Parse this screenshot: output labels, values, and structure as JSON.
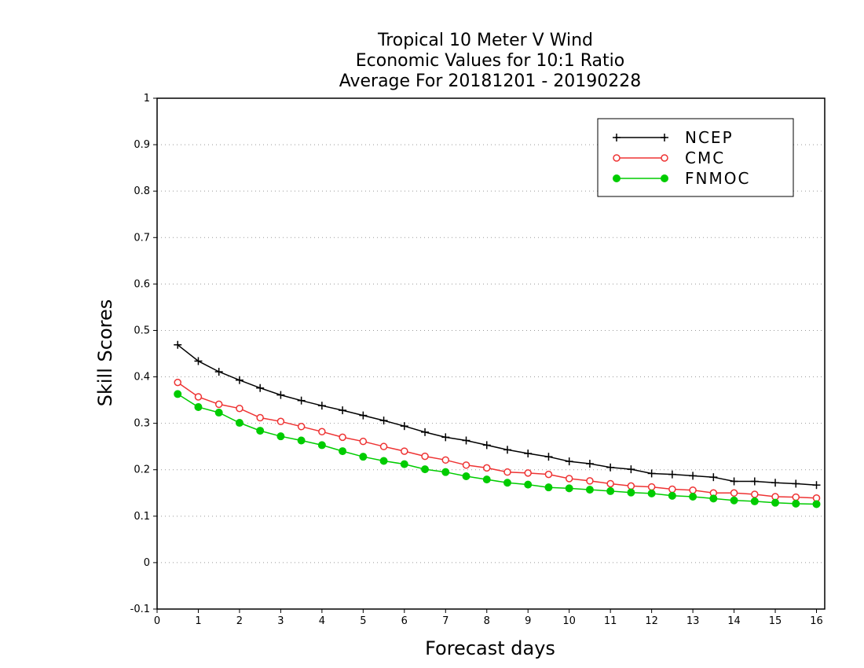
{
  "chart_data": {
    "type": "line",
    "title": [
      "Tropical 10 Meter V Wind",
      "Economic Values for 10:1 Ratio",
      "Average For 20181201 - 20190228"
    ],
    "xlabel": "Forecast days",
    "ylabel": "Skill Scores",
    "xlim": [
      0,
      16.2
    ],
    "ylim": [
      -0.1,
      1
    ],
    "xticks": [
      0,
      1,
      2,
      3,
      4,
      5,
      6,
      7,
      8,
      9,
      10,
      11,
      12,
      13,
      14,
      15,
      16
    ],
    "yticks": [
      -0.1,
      0,
      0.1,
      0.2,
      0.3,
      0.4,
      0.5,
      0.6,
      0.7,
      0.8,
      0.9,
      1
    ],
    "ytick_labels": [
      "-0.1",
      "0",
      "0.1",
      "0.2",
      "0.3",
      "0.4",
      "0.5",
      "0.6",
      "0.7",
      "0.8",
      "0.9",
      "1"
    ],
    "grid": "horizontal dotted",
    "legend_position": "top-right",
    "x": [
      0.5,
      1,
      1.5,
      2,
      2.5,
      3,
      3.5,
      4,
      4.5,
      5,
      5.5,
      6,
      6.5,
      7,
      7.5,
      8,
      8.5,
      9,
      9.5,
      10,
      10.5,
      11,
      11.5,
      12,
      12.5,
      13,
      13.5,
      14,
      14.5,
      15,
      15.5,
      16
    ],
    "series": [
      {
        "name": "NCEP",
        "color": "#000000",
        "marker": "plus",
        "values": [
          0.469,
          0.434,
          0.411,
          0.393,
          0.376,
          0.361,
          0.349,
          0.338,
          0.328,
          0.317,
          0.306,
          0.294,
          0.281,
          0.27,
          0.263,
          0.253,
          0.243,
          0.235,
          0.228,
          0.218,
          0.213,
          0.205,
          0.201,
          0.192,
          0.19,
          0.187,
          0.184,
          0.175,
          0.175,
          0.172,
          0.17,
          0.167
        ]
      },
      {
        "name": "CMC",
        "color": "#ee3333",
        "marker": "open-circle",
        "values": [
          0.388,
          0.357,
          0.341,
          0.332,
          0.312,
          0.304,
          0.293,
          0.282,
          0.27,
          0.261,
          0.25,
          0.24,
          0.229,
          0.221,
          0.21,
          0.204,
          0.195,
          0.193,
          0.19,
          0.181,
          0.176,
          0.17,
          0.165,
          0.163,
          0.158,
          0.156,
          0.15,
          0.15,
          0.147,
          0.142,
          0.141,
          0.139
        ]
      },
      {
        "name": "FNMOC",
        "color": "#00cc00",
        "marker": "filled-circle",
        "values": [
          0.363,
          0.335,
          0.323,
          0.301,
          0.284,
          0.272,
          0.263,
          0.253,
          0.24,
          0.228,
          0.219,
          0.212,
          0.201,
          0.195,
          0.186,
          0.179,
          0.172,
          0.168,
          0.162,
          0.16,
          0.157,
          0.154,
          0.151,
          0.149,
          0.144,
          0.142,
          0.138,
          0.134,
          0.132,
          0.129,
          0.127,
          0.126
        ]
      }
    ]
  }
}
